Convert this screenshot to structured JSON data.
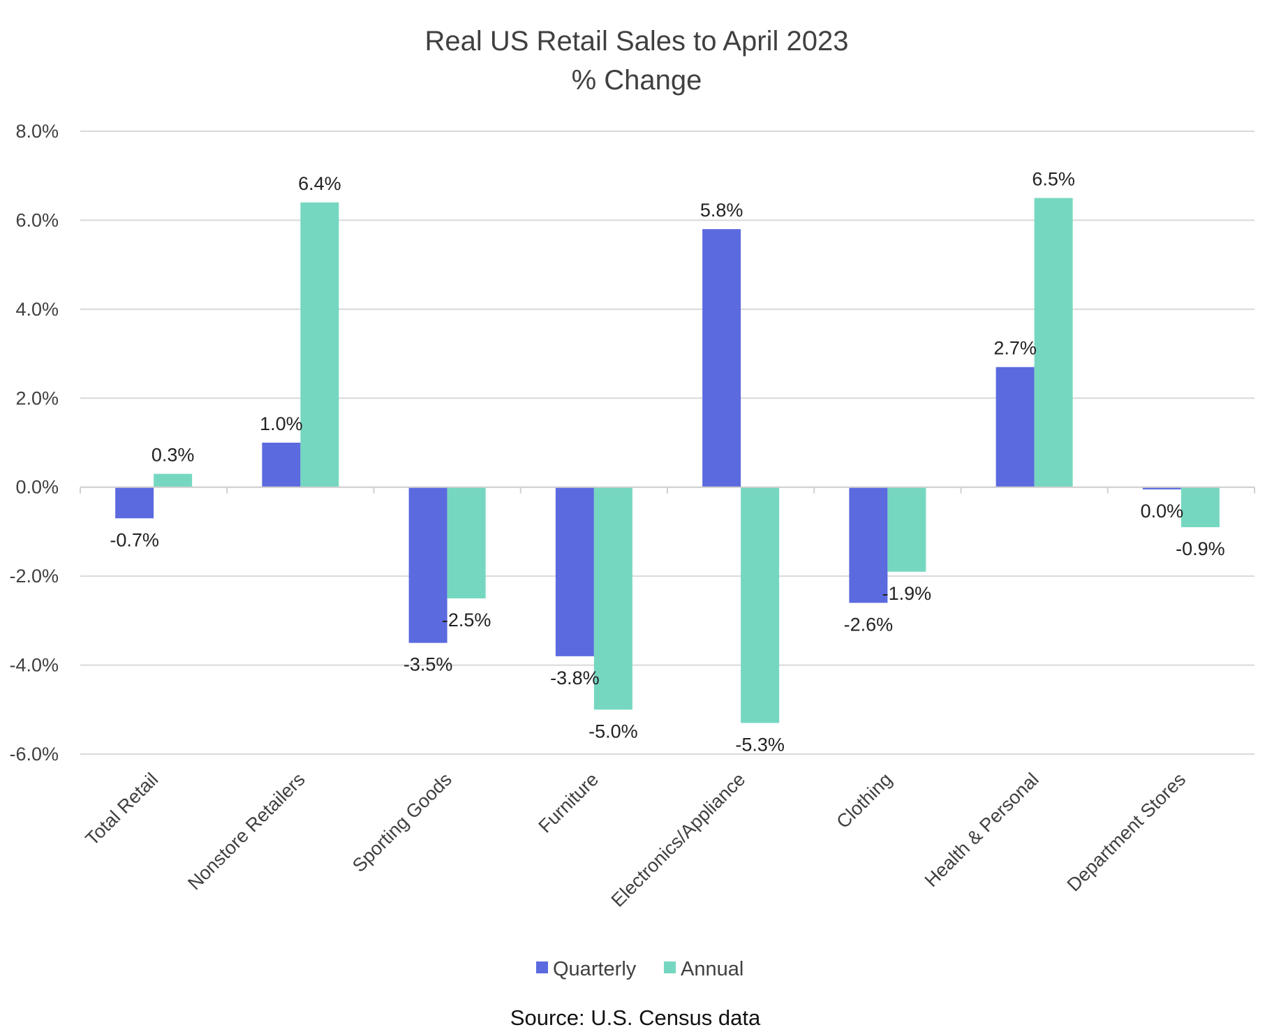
{
  "chart_data": {
    "type": "bar",
    "title": "Real US Retail Sales to April 2023",
    "subtitle": "% Change",
    "source": "Source: U.S. Census data",
    "categories": [
      "Total Retail",
      "Nonstore Retailers",
      "Sporting Goods",
      "Furniture",
      "Electronics/Appliance",
      "Clothing",
      "Health & Personal",
      "Department Stores"
    ],
    "series": [
      {
        "name": "Quarterly",
        "color": "#5b6adf",
        "values": [
          -0.7,
          1.0,
          -3.5,
          -3.8,
          5.8,
          -2.6,
          2.7,
          -0.05
        ],
        "labels": [
          "-0.7%",
          "1.0%",
          "-3.5%",
          "-3.8%",
          "5.8%",
          "-2.6%",
          "2.7%",
          "0.0%"
        ]
      },
      {
        "name": "Annual",
        "color": "#76d7c0",
        "values": [
          0.3,
          6.4,
          -2.5,
          -5.0,
          -5.3,
          -1.9,
          6.5,
          -0.9
        ],
        "labels": [
          "0.3%",
          "6.4%",
          "-2.5%",
          "-5.0%",
          "-5.3%",
          "-1.9%",
          "6.5%",
          "-0.9%"
        ]
      }
    ],
    "ylim": [
      -6,
      8
    ],
    "yticks": [
      8,
      6,
      4,
      2,
      0,
      -2,
      -4,
      -6
    ],
    "ytick_labels": [
      "8.0%",
      "6.0%",
      "4.0%",
      "2.0%",
      "0.0%",
      "-2.0%",
      "-4.0%",
      "-6.0%"
    ],
    "xlabel": "",
    "ylabel": "",
    "grid": true,
    "legend_position": "bottom"
  }
}
